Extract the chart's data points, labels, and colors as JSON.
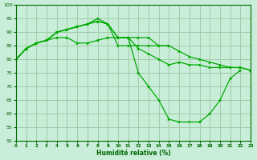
{
  "xlabel": "Humidité relative (%)",
  "background_color": "#c8edd8",
  "grid_color": "#a0cca8",
  "line_color": "#00aa00",
  "ylim": [
    50,
    100
  ],
  "xlim": [
    0,
    23
  ],
  "yticks": [
    50,
    55,
    60,
    65,
    70,
    75,
    80,
    85,
    90,
    95,
    100
  ],
  "xticks": [
    0,
    1,
    2,
    3,
    4,
    5,
    6,
    7,
    8,
    9,
    10,
    11,
    12,
    13,
    14,
    15,
    16,
    17,
    18,
    19,
    20,
    21,
    22,
    23
  ],
  "series": [
    {
      "x": [
        0,
        1,
        2,
        3,
        4,
        5,
        6,
        7,
        8,
        9,
        10,
        11,
        12,
        13,
        14,
        15,
        16,
        17,
        18,
        19,
        20,
        21,
        22,
        23
      ],
      "y": [
        80,
        84,
        86,
        87,
        88,
        88,
        86,
        86,
        87,
        88,
        88,
        88,
        84,
        82,
        80,
        78,
        79,
        78,
        78,
        77,
        77,
        77,
        77,
        76
      ]
    },
    {
      "x": [
        0,
        1,
        2,
        3,
        4,
        5,
        6,
        7,
        8,
        9,
        10,
        11,
        12,
        13,
        14,
        15,
        16,
        17,
        18,
        19,
        20,
        21,
        22,
        23
      ],
      "y": [
        80,
        84,
        86,
        87,
        90,
        91,
        92,
        93,
        95,
        93,
        85,
        85,
        85,
        85,
        85,
        85,
        83,
        81,
        80,
        79,
        78,
        77,
        77,
        76
      ]
    },
    {
      "x": [
        0,
        1,
        2,
        3,
        4,
        5,
        6,
        7,
        8,
        9,
        10,
        11,
        12,
        13,
        14,
        15
      ],
      "y": [
        80,
        84,
        86,
        87,
        90,
        91,
        92,
        93,
        94,
        93,
        88,
        88,
        88,
        88,
        85,
        85
      ]
    },
    {
      "x": [
        0,
        1,
        2,
        3,
        4,
        5,
        6,
        7,
        8,
        9,
        10,
        11,
        12,
        13,
        14,
        15,
        16,
        17,
        18,
        19,
        20,
        21,
        22
      ],
      "y": [
        80,
        84,
        86,
        87,
        90,
        91,
        92,
        93,
        94,
        93,
        88,
        88,
        75,
        70,
        65,
        58,
        57,
        57,
        57,
        60,
        65,
        73,
        76
      ]
    }
  ]
}
